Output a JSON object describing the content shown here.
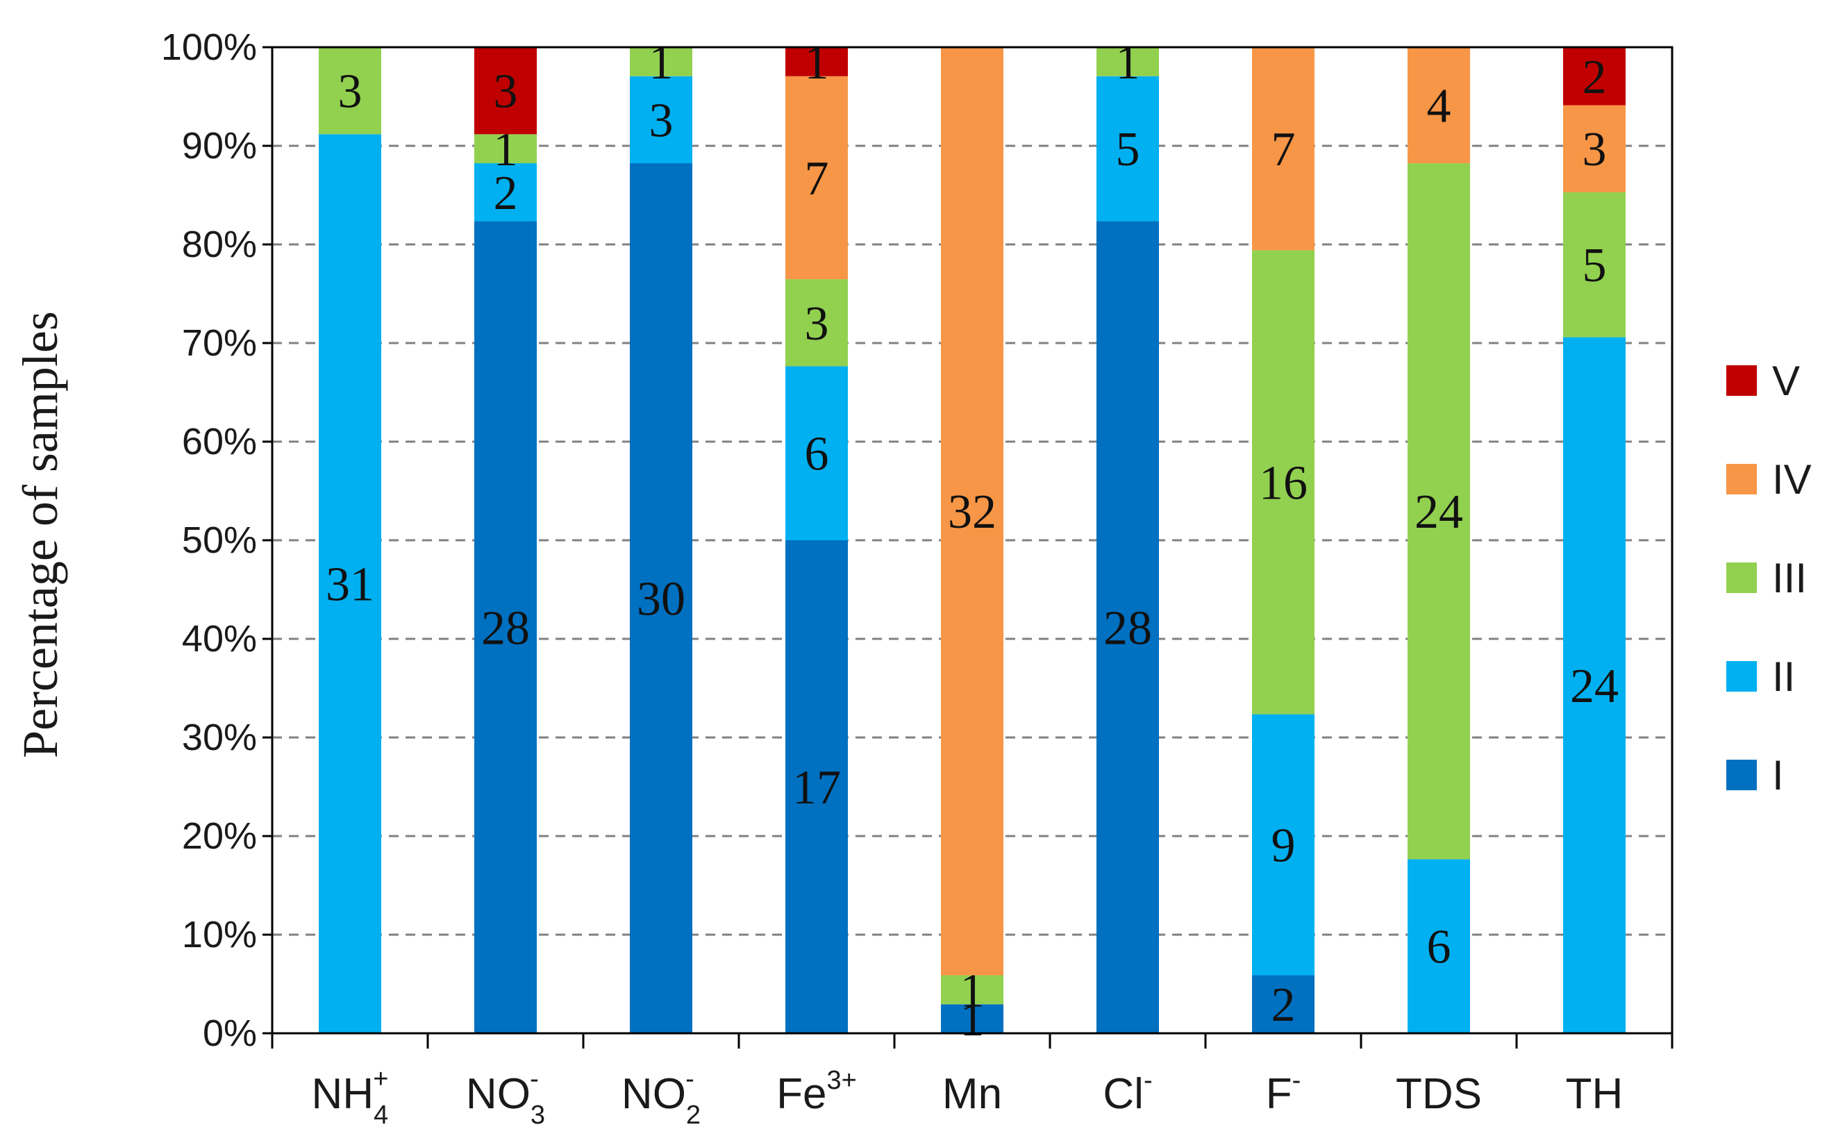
{
  "chart_data": {
    "type": "bar",
    "stacked": true,
    "percent": true,
    "title": "",
    "xlabel": "",
    "ylabel": "Percentage of samples",
    "ylim": [
      0,
      100
    ],
    "yticks": [
      "0%",
      "10%",
      "20%",
      "30%",
      "40%",
      "50%",
      "60%",
      "70%",
      "80%",
      "90%",
      "100%"
    ],
    "grid": "horizontal dashed",
    "legend_position": "right",
    "categories": [
      {
        "base": "NH",
        "sub": "4",
        "sup": "+"
      },
      {
        "base": "NO",
        "sub": "3",
        "sup": "-"
      },
      {
        "base": "NO",
        "sub": "2",
        "sup": "-"
      },
      {
        "base": "Fe",
        "sub": "",
        "sup": "3+"
      },
      {
        "base": "Mn",
        "sub": "",
        "sup": ""
      },
      {
        "base": "Cl",
        "sub": "",
        "sup": "-"
      },
      {
        "base": "F",
        "sub": "",
        "sup": "-"
      },
      {
        "base": "TDS",
        "sub": "",
        "sup": ""
      },
      {
        "base": "TH",
        "sub": "",
        "sup": ""
      }
    ],
    "series": [
      {
        "name": "I",
        "color": "#0070c0",
        "values": [
          0,
          28,
          30,
          17,
          1,
          28,
          2,
          0,
          0
        ]
      },
      {
        "name": "II",
        "color": "#00b0f0",
        "values": [
          31,
          2,
          3,
          6,
          0,
          5,
          9,
          6,
          24
        ]
      },
      {
        "name": "III",
        "color": "#92d050",
        "values": [
          3,
          1,
          1,
          3,
          1,
          1,
          16,
          24,
          5
        ]
      },
      {
        "name": "IV",
        "color": "#f79646",
        "values": [
          0,
          0,
          0,
          7,
          32,
          0,
          7,
          4,
          3
        ]
      },
      {
        "name": "V",
        "color": "#c00000",
        "values": [
          0,
          3,
          0,
          1,
          0,
          0,
          0,
          0,
          2
        ]
      }
    ],
    "legend_order": [
      "V",
      "IV",
      "III",
      "II",
      "I"
    ]
  }
}
